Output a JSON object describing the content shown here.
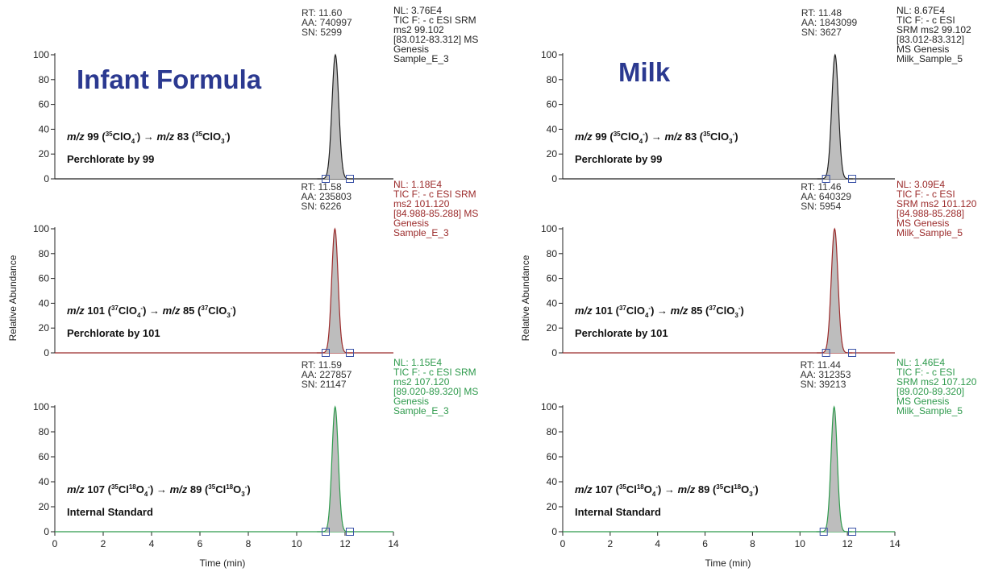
{
  "x_axis": {
    "label": "Time (min)",
    "ticks": [
      "0",
      "2",
      "4",
      "6",
      "8",
      "10",
      "12",
      "14"
    ]
  },
  "y_axis": {
    "label": "Relative Abundance",
    "ticks": [
      "0",
      "20",
      "40",
      "60",
      "80",
      "100"
    ]
  },
  "transitions": {
    "t99": {
      "mz1": "m/z",
      "n1": "99",
      "ion1": "(35ClO4-)",
      "mz2": "m/z",
      "n2": "83",
      "ion2": "(35ClO3-)"
    },
    "t101": {
      "mz1": "m/z",
      "n1": "101",
      "ion1": "(37ClO4-)",
      "mz2": "m/z",
      "n2": "85",
      "ion2": "(37ClO3-)"
    },
    "t107": {
      "mz1": "m/z",
      "n1": "107",
      "ion1": "(35Cl18O4-)",
      "mz2": "m/z",
      "n2": "89",
      "ion2": "(35Cl18O3-)"
    }
  },
  "colors": {
    "black": "#222222",
    "red": "#9b2a2a",
    "green": "#2e9a4c",
    "title": "#2b3990",
    "fill": "#bdbdbd",
    "marker": "#3d55a8"
  },
  "chart_data": [
    {
      "type": "line",
      "panel": "infant-1",
      "title": "Infant Formula",
      "compound": "Perchlorate by 99",
      "transition": "t99",
      "color": "#222222",
      "xlim": [
        0,
        14
      ],
      "ylim": [
        0,
        100
      ],
      "peak": {
        "rt": 11.6,
        "width": 0.14,
        "x_start": 11.2,
        "x_end": 12.2
      },
      "x": [
        0,
        2,
        4,
        6,
        8,
        10,
        11.2,
        11.4,
        11.6,
        11.8,
        12.2,
        14
      ],
      "y": [
        0,
        0,
        0,
        0,
        0,
        0,
        1,
        50,
        100,
        50,
        1,
        0
      ],
      "info_left": [
        "RT: 11.60",
        "AA: 740997",
        "SN: 5299"
      ],
      "info_right": [
        "NL: 3.76E4",
        "TIC F: - c ESI SRM",
        "ms2 99.102",
        "[83.012-83.312]  MS",
        "Genesis",
        "Sample_E_3"
      ]
    },
    {
      "type": "line",
      "panel": "infant-2",
      "compound": "Perchlorate by 101",
      "transition": "t101",
      "color": "#9b2a2a",
      "xlim": [
        0,
        14
      ],
      "ylim": [
        0,
        100
      ],
      "peak": {
        "rt": 11.58,
        "width": 0.13,
        "x_start": 11.2,
        "x_end": 12.2
      },
      "x": [
        0,
        2,
        4,
        6,
        8,
        10,
        11.2,
        11.4,
        11.58,
        11.8,
        12.2,
        14
      ],
      "y": [
        0,
        0,
        0,
        0,
        0,
        0,
        1,
        50,
        100,
        45,
        1,
        0
      ],
      "info_left": [
        "RT: 11.58",
        "AA: 235803",
        "SN: 6226"
      ],
      "info_right": [
        "NL: 1.18E4",
        "TIC F: - c ESI SRM",
        "ms2 101.120",
        "[84.988-85.288]  MS",
        "Genesis",
        "Sample_E_3"
      ]
    },
    {
      "type": "line",
      "panel": "infant-3",
      "compound": "Internal Standard",
      "transition": "t107",
      "color": "#2e9a4c",
      "xlim": [
        0,
        14
      ],
      "ylim": [
        0,
        100
      ],
      "peak": {
        "rt": 11.59,
        "width": 0.13,
        "x_start": 11.2,
        "x_end": 12.2
      },
      "x": [
        0,
        2,
        4,
        6,
        8,
        10,
        11.2,
        11.4,
        11.59,
        11.8,
        12.2,
        14
      ],
      "y": [
        0,
        0,
        0,
        0,
        0,
        0,
        1,
        50,
        100,
        45,
        1,
        0
      ],
      "info_left": [
        "RT: 11.59",
        "AA: 227857",
        "SN: 21147"
      ],
      "info_right": [
        "NL: 1.15E4",
        "TIC F: - c ESI SRM",
        "ms2 107.120",
        "[89.020-89.320]  MS",
        "Genesis",
        "Sample_E_3"
      ]
    },
    {
      "type": "line",
      "panel": "milk-1",
      "title": "Milk",
      "compound": "Perchlorate by 99",
      "transition": "t99",
      "color": "#222222",
      "xlim": [
        0,
        14
      ],
      "ylim": [
        0,
        100
      ],
      "peak": {
        "rt": 11.48,
        "width": 0.14,
        "x_start": 11.1,
        "x_end": 12.2
      },
      "x": [
        0,
        2,
        4,
        6,
        8,
        10,
        11.1,
        11.3,
        11.48,
        11.7,
        12.2,
        14
      ],
      "y": [
        0,
        0,
        0,
        0,
        0,
        0,
        1,
        50,
        100,
        50,
        1,
        0
      ],
      "info_left": [
        "RT: 11.48",
        "AA: 1843099",
        "SN: 3627"
      ],
      "info_right": [
        "NL: 8.67E4",
        "TIC F: - c ESI",
        "SRM ms2 99.102",
        "[83.012-83.312]",
        "MS  Genesis",
        "Milk_Sample_5"
      ]
    },
    {
      "type": "line",
      "panel": "milk-2",
      "compound": "Perchlorate by 101",
      "transition": "t101",
      "color": "#9b2a2a",
      "xlim": [
        0,
        14
      ],
      "ylim": [
        0,
        100
      ],
      "peak": {
        "rt": 11.46,
        "width": 0.14,
        "x_start": 11.1,
        "x_end": 12.2
      },
      "x": [
        0,
        2,
        4,
        6,
        8,
        10,
        11.1,
        11.3,
        11.46,
        11.7,
        12.2,
        14
      ],
      "y": [
        0,
        0,
        0,
        0,
        0,
        0,
        1,
        50,
        100,
        45,
        1,
        0
      ],
      "info_left": [
        "RT: 11.46",
        "AA: 640329",
        "SN: 5954"
      ],
      "info_right": [
        "NL: 3.09E4",
        "TIC F: - c ESI",
        "SRM ms2 101.120",
        "[84.988-85.288]",
        "MS  Genesis",
        "Milk_Sample_5"
      ]
    },
    {
      "type": "line",
      "panel": "milk-3",
      "compound": "Internal Standard",
      "transition": "t107",
      "color": "#2e9a4c",
      "xlim": [
        0,
        14
      ],
      "ylim": [
        0,
        100
      ],
      "peak": {
        "rt": 11.44,
        "width": 0.13,
        "x_start": 11.0,
        "x_end": 12.2
      },
      "x": [
        0,
        2,
        4,
        6,
        8,
        10,
        11.0,
        11.3,
        11.44,
        11.7,
        12.2,
        14
      ],
      "y": [
        0,
        0,
        0,
        0,
        0,
        0,
        1,
        50,
        100,
        45,
        1,
        0
      ],
      "info_left": [
        "RT: 11.44",
        "AA: 312353",
        "SN: 39213"
      ],
      "info_right": [
        "NL: 1.46E4",
        "TIC F: - c ESI",
        "SRM ms2 107.120",
        "[89.020-89.320]",
        "MS  Genesis",
        "Milk_Sample_5"
      ]
    }
  ]
}
